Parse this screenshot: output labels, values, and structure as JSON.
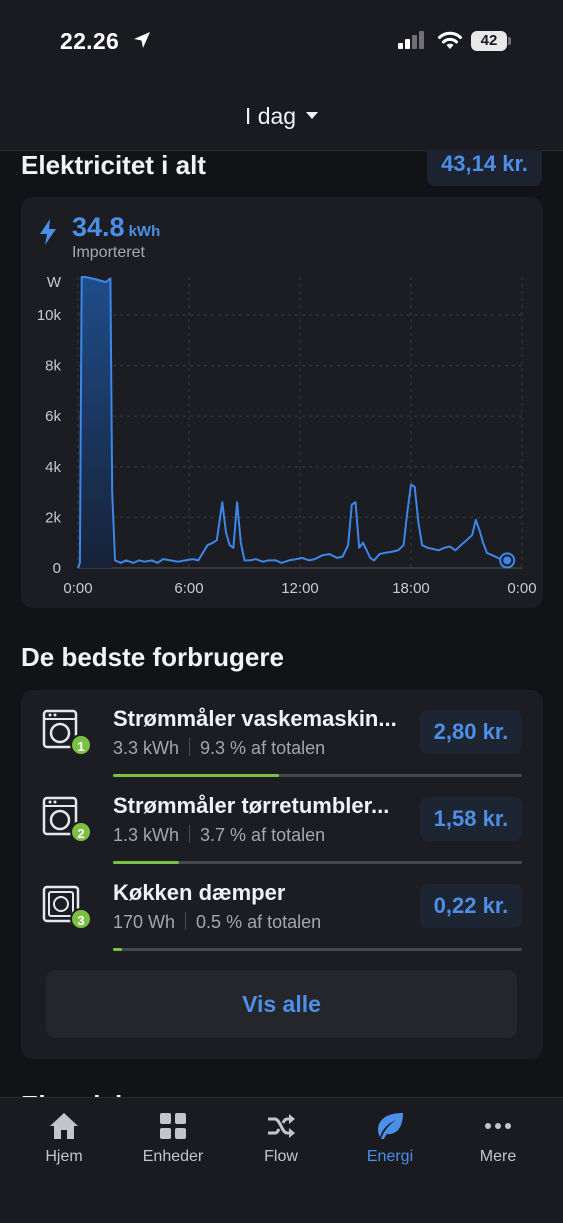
{
  "status_bar": {
    "time": "22.26",
    "battery": "42"
  },
  "header": {
    "date_selector": "I dag"
  },
  "electricity": {
    "title": "Elektricitet i alt",
    "total_cost": "43,14 kr.",
    "imported_value": "34.8",
    "imported_unit": "kWh",
    "imported_label": "Importeret"
  },
  "chart_data": {
    "type": "area",
    "ylabel": "W",
    "y_ticks": [
      "0",
      "2k",
      "4k",
      "6k",
      "8k",
      "10k"
    ],
    "x_ticks": [
      "0:00",
      "6:00",
      "12:00",
      "18:00",
      "0:00"
    ],
    "ylim": [
      0,
      11500
    ],
    "xlim": [
      0,
      24
    ],
    "x_hours": [
      0,
      0.1,
      0.2,
      0.4,
      1.0,
      1.5,
      1.75,
      1.85,
      2.0,
      2.3,
      2.6,
      3.0,
      3.3,
      3.6,
      4.0,
      4.3,
      4.6,
      5.0,
      5.4,
      5.8,
      6.2,
      6.5,
      7.0,
      7.3,
      7.5,
      7.8,
      8.0,
      8.2,
      8.4,
      8.6,
      8.8,
      9.0,
      9.3,
      9.6,
      10.0,
      10.3,
      10.7,
      11.0,
      11.4,
      11.8,
      12.1,
      12.5,
      12.8,
      13.2,
      13.6,
      14.0,
      14.3,
      14.6,
      14.8,
      15.0,
      15.2,
      15.4,
      15.6,
      15.8,
      16.0,
      16.3,
      16.6,
      17.0,
      17.3,
      17.6,
      17.8,
      18.0,
      18.2,
      18.4,
      18.6,
      18.9,
      19.2,
      19.5,
      19.8,
      20.1,
      20.4,
      20.7,
      21.0,
      21.3,
      21.5,
      21.7,
      21.9,
      22.1,
      22.4,
      22.7,
      23.0,
      23.2
    ],
    "series": [
      {
        "values": [
          0,
          200,
          11500,
          11500,
          11400,
          11300,
          11450,
          3000,
          300,
          200,
          300,
          200,
          300,
          250,
          300,
          200,
          350,
          300,
          250,
          300,
          350,
          300,
          900,
          1000,
          1100,
          2600,
          1400,
          900,
          800,
          2600,
          1000,
          300,
          300,
          350,
          250,
          300,
          300,
          200,
          300,
          350,
          400,
          300,
          350,
          500,
          550,
          400,
          450,
          900,
          2500,
          2600,
          800,
          1000,
          700,
          400,
          300,
          550,
          600,
          650,
          700,
          900,
          2200,
          3300,
          3200,
          1800,
          900,
          800,
          750,
          700,
          800,
          850,
          700,
          900,
          1100,
          1300,
          1900,
          1500,
          1000,
          600,
          500,
          400,
          300,
          300
        ]
      }
    ]
  },
  "top_consumers": {
    "title": "De bedste forbrugere",
    "items": [
      {
        "rank": "1",
        "name": "Strømmåler vaskemaskin...",
        "energy": "3.3 kWh",
        "share": "9.3 % af totalen",
        "share_fraction": 0.093,
        "cost": "2,80 kr."
      },
      {
        "rank": "2",
        "name": "Strømmåler tørretumbler...",
        "energy": "1.3 kWh",
        "share": "3.7 % af totalen",
        "share_fraction": 0.037,
        "cost": "1,58 kr."
      },
      {
        "rank": "3",
        "name": "Køkken dæmper",
        "energy": "170 Wh",
        "share": "0.5 % af totalen",
        "share_fraction": 0.005,
        "cost": "0,22 kr."
      }
    ],
    "view_all": "Vis alle"
  },
  "next_section": {
    "title": "Electricity sources"
  },
  "tabbar": {
    "tabs": [
      {
        "label": "Hjem",
        "icon": "home-icon"
      },
      {
        "label": "Enheder",
        "icon": "grid-icon"
      },
      {
        "label": "Flow",
        "icon": "shuffle-icon"
      },
      {
        "label": "Energi",
        "icon": "leaf-icon",
        "active": true
      },
      {
        "label": "Mere",
        "icon": "more-icon"
      }
    ]
  },
  "colors": {
    "accent": "#4a8fe8",
    "progress": "#7bc043",
    "background": "#121317",
    "card": "#1c1d22"
  }
}
